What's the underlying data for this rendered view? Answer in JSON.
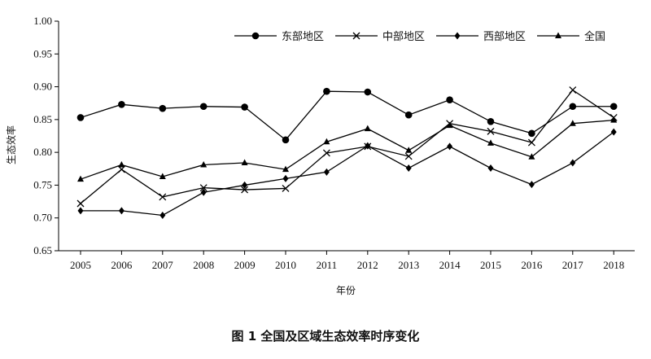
{
  "caption": "图 1    全国及区域生态效率时序变化",
  "chart_data": {
    "type": "line",
    "xlabel": "年份",
    "ylabel": "生态效率",
    "categories": [
      "2005",
      "2006",
      "2007",
      "2008",
      "2009",
      "2010",
      "2011",
      "2012",
      "2013",
      "2014",
      "2015",
      "2016",
      "2017",
      "2018"
    ],
    "ylim": [
      0.65,
      1.0
    ],
    "yticks": [
      "0.65",
      "0.70",
      "0.75",
      "0.80",
      "0.85",
      "0.90",
      "0.95",
      "1.00"
    ],
    "grid": false,
    "legend_position": "top",
    "series": [
      {
        "name": "东部地区",
        "marker": "circle",
        "values": [
          0.853,
          0.873,
          0.867,
          0.87,
          0.869,
          0.819,
          0.893,
          0.892,
          0.857,
          0.88,
          0.847,
          0.829,
          0.87,
          0.87
        ]
      },
      {
        "name": "中部地区",
        "marker": "cross",
        "values": [
          0.722,
          0.774,
          0.732,
          0.746,
          0.743,
          0.745,
          0.799,
          0.809,
          0.794,
          0.844,
          0.832,
          0.815,
          0.895,
          0.853
        ]
      },
      {
        "name": "西部地区",
        "marker": "diamond",
        "values": [
          0.711,
          0.711,
          0.704,
          0.739,
          0.75,
          0.76,
          0.77,
          0.81,
          0.776,
          0.809,
          0.776,
          0.751,
          0.784,
          0.831
        ]
      },
      {
        "name": "全国",
        "marker": "triangle",
        "values": [
          0.759,
          0.781,
          0.763,
          0.781,
          0.784,
          0.774,
          0.816,
          0.836,
          0.803,
          0.841,
          0.814,
          0.793,
          0.844,
          0.849
        ]
      }
    ]
  }
}
